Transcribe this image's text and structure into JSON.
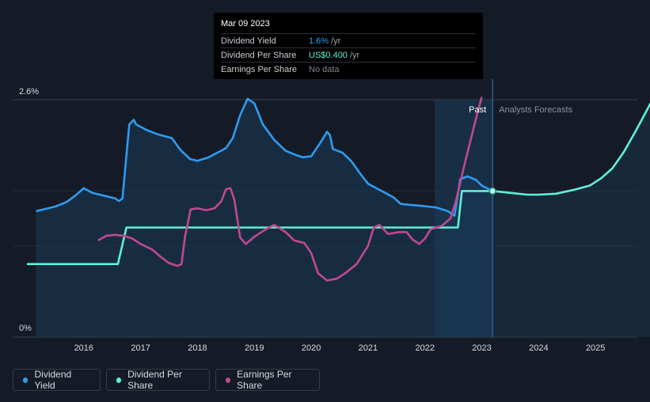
{
  "tooltip": {
    "date": "Mar 09 2023",
    "rows": [
      {
        "label": "Dividend Yield",
        "value": "1.6%",
        "unit": "/yr",
        "color": "#2e9bf0"
      },
      {
        "label": "Dividend Per Share",
        "value": "US$0.400",
        "unit": "/yr",
        "color": "#5ff0d8"
      },
      {
        "label": "Earnings Per Share",
        "value": "No data",
        "unit": "",
        "color": "#7d838c"
      }
    ]
  },
  "regions": {
    "past_label": "Past",
    "forecast_label": "Analysts Forecasts"
  },
  "legend": [
    {
      "label": "Dividend Yield",
      "color": "#2e9bf0"
    },
    {
      "label": "Dividend Per Share",
      "color": "#5ff0d8"
    },
    {
      "label": "Earnings Per Share",
      "color": "#c0498e"
    }
  ],
  "chart_data": {
    "type": "line",
    "y_tick_labels": [
      "2.6%",
      "0%"
    ],
    "ylim": [
      0,
      2.6
    ],
    "xlim": [
      2015.0,
      2026.0
    ],
    "x_ticks": [
      2016,
      2017,
      2018,
      2019,
      2020,
      2021,
      2022,
      2023,
      2024,
      2025
    ],
    "x_tick_labels": [
      "2016",
      "2017",
      "2018",
      "2019",
      "2020",
      "2021",
      "2022",
      "2023",
      "2024",
      "2025"
    ],
    "grid": true,
    "highlight_point": {
      "x": 2023.19,
      "y": 1.6
    },
    "forecast_shade_start": 2022.17,
    "series": [
      {
        "name": "Dividend Yield",
        "color": "#2e9bf0",
        "area": true,
        "points": [
          [
            2015.16,
            1.38
          ],
          [
            2015.3,
            1.4
          ],
          [
            2015.5,
            1.43
          ],
          [
            2015.7,
            1.48
          ],
          [
            2015.85,
            1.55
          ],
          [
            2016.0,
            1.63
          ],
          [
            2016.15,
            1.58
          ],
          [
            2016.35,
            1.55
          ],
          [
            2016.55,
            1.52
          ],
          [
            2016.62,
            1.49
          ],
          [
            2016.68,
            1.52
          ],
          [
            2016.8,
            2.33
          ],
          [
            2016.88,
            2.38
          ],
          [
            2016.92,
            2.33
          ],
          [
            2017.1,
            2.27
          ],
          [
            2017.3,
            2.22
          ],
          [
            2017.55,
            2.18
          ],
          [
            2017.7,
            2.05
          ],
          [
            2017.87,
            1.95
          ],
          [
            2018.0,
            1.93
          ],
          [
            2018.2,
            1.97
          ],
          [
            2018.35,
            2.02
          ],
          [
            2018.5,
            2.07
          ],
          [
            2018.62,
            2.18
          ],
          [
            2018.75,
            2.43
          ],
          [
            2018.88,
            2.61
          ],
          [
            2019.0,
            2.56
          ],
          [
            2019.15,
            2.33
          ],
          [
            2019.35,
            2.16
          ],
          [
            2019.55,
            2.04
          ],
          [
            2019.75,
            1.99
          ],
          [
            2019.85,
            1.97
          ],
          [
            2020.0,
            1.98
          ],
          [
            2020.15,
            2.12
          ],
          [
            2020.28,
            2.25
          ],
          [
            2020.33,
            2.21
          ],
          [
            2020.38,
            2.06
          ],
          [
            2020.55,
            2.02
          ],
          [
            2020.7,
            1.93
          ],
          [
            2020.85,
            1.8
          ],
          [
            2021.0,
            1.68
          ],
          [
            2021.18,
            1.62
          ],
          [
            2021.3,
            1.58
          ],
          [
            2021.45,
            1.53
          ],
          [
            2021.57,
            1.46
          ],
          [
            2021.7,
            1.45
          ],
          [
            2021.9,
            1.44
          ],
          [
            2022.05,
            1.43
          ],
          [
            2022.2,
            1.42
          ],
          [
            2022.4,
            1.38
          ],
          [
            2022.52,
            1.33
          ],
          [
            2022.62,
            1.73
          ],
          [
            2022.75,
            1.76
          ],
          [
            2022.9,
            1.72
          ],
          [
            2023.0,
            1.66
          ],
          [
            2023.19,
            1.6
          ]
        ]
      },
      {
        "name": "Dividend Per Share",
        "color": "#5ff0d8",
        "area": false,
        "points": [
          [
            2015.0,
            0.8
          ],
          [
            2016.0,
            0.8
          ],
          [
            2016.6,
            0.8
          ],
          [
            2016.75,
            1.2
          ],
          [
            2017.5,
            1.2
          ],
          [
            2018.5,
            1.2
          ],
          [
            2019.5,
            1.2
          ],
          [
            2020.5,
            1.2
          ],
          [
            2021.5,
            1.2
          ],
          [
            2022.58,
            1.2
          ],
          [
            2022.65,
            1.6
          ],
          [
            2023.0,
            1.6
          ],
          [
            2023.19,
            1.6
          ],
          [
            2023.5,
            1.58
          ],
          [
            2023.8,
            1.56
          ],
          [
            2024.0,
            1.56
          ],
          [
            2024.3,
            1.57
          ],
          [
            2024.6,
            1.61
          ],
          [
            2024.9,
            1.66
          ],
          [
            2025.1,
            1.74
          ],
          [
            2025.3,
            1.85
          ],
          [
            2025.5,
            2.03
          ],
          [
            2025.7,
            2.25
          ],
          [
            2025.9,
            2.48
          ],
          [
            2026.0,
            2.6
          ]
        ]
      },
      {
        "name": "Earnings Per Share",
        "color": "#c0498e",
        "area": false,
        "points": [
          [
            2016.25,
            1.06
          ],
          [
            2016.4,
            1.11
          ],
          [
            2016.55,
            1.12
          ],
          [
            2016.7,
            1.11
          ],
          [
            2016.85,
            1.08
          ],
          [
            2017.0,
            1.02
          ],
          [
            2017.2,
            0.96
          ],
          [
            2017.35,
            0.88
          ],
          [
            2017.5,
            0.81
          ],
          [
            2017.65,
            0.78
          ],
          [
            2017.72,
            0.8
          ],
          [
            2017.78,
            1.1
          ],
          [
            2017.88,
            1.4
          ],
          [
            2018.0,
            1.41
          ],
          [
            2018.15,
            1.39
          ],
          [
            2018.3,
            1.41
          ],
          [
            2018.42,
            1.49
          ],
          [
            2018.5,
            1.62
          ],
          [
            2018.58,
            1.63
          ],
          [
            2018.65,
            1.5
          ],
          [
            2018.75,
            1.09
          ],
          [
            2018.85,
            1.02
          ],
          [
            2019.0,
            1.1
          ],
          [
            2019.2,
            1.18
          ],
          [
            2019.35,
            1.23
          ],
          [
            2019.55,
            1.15
          ],
          [
            2019.7,
            1.06
          ],
          [
            2019.88,
            1.03
          ],
          [
            2020.0,
            0.92
          ],
          [
            2020.12,
            0.7
          ],
          [
            2020.28,
            0.62
          ],
          [
            2020.45,
            0.64
          ],
          [
            2020.6,
            0.7
          ],
          [
            2020.8,
            0.8
          ],
          [
            2021.0,
            1.0
          ],
          [
            2021.1,
            1.2
          ],
          [
            2021.2,
            1.23
          ],
          [
            2021.35,
            1.13
          ],
          [
            2021.55,
            1.15
          ],
          [
            2021.68,
            1.15
          ],
          [
            2021.78,
            1.07
          ],
          [
            2021.9,
            1.02
          ],
          [
            2022.0,
            1.08
          ],
          [
            2022.1,
            1.18
          ],
          [
            2022.3,
            1.22
          ],
          [
            2022.45,
            1.3
          ],
          [
            2022.55,
            1.5
          ],
          [
            2022.68,
            1.85
          ],
          [
            2022.8,
            2.15
          ],
          [
            2022.9,
            2.4
          ],
          [
            2023.0,
            2.63
          ]
        ]
      }
    ]
  }
}
